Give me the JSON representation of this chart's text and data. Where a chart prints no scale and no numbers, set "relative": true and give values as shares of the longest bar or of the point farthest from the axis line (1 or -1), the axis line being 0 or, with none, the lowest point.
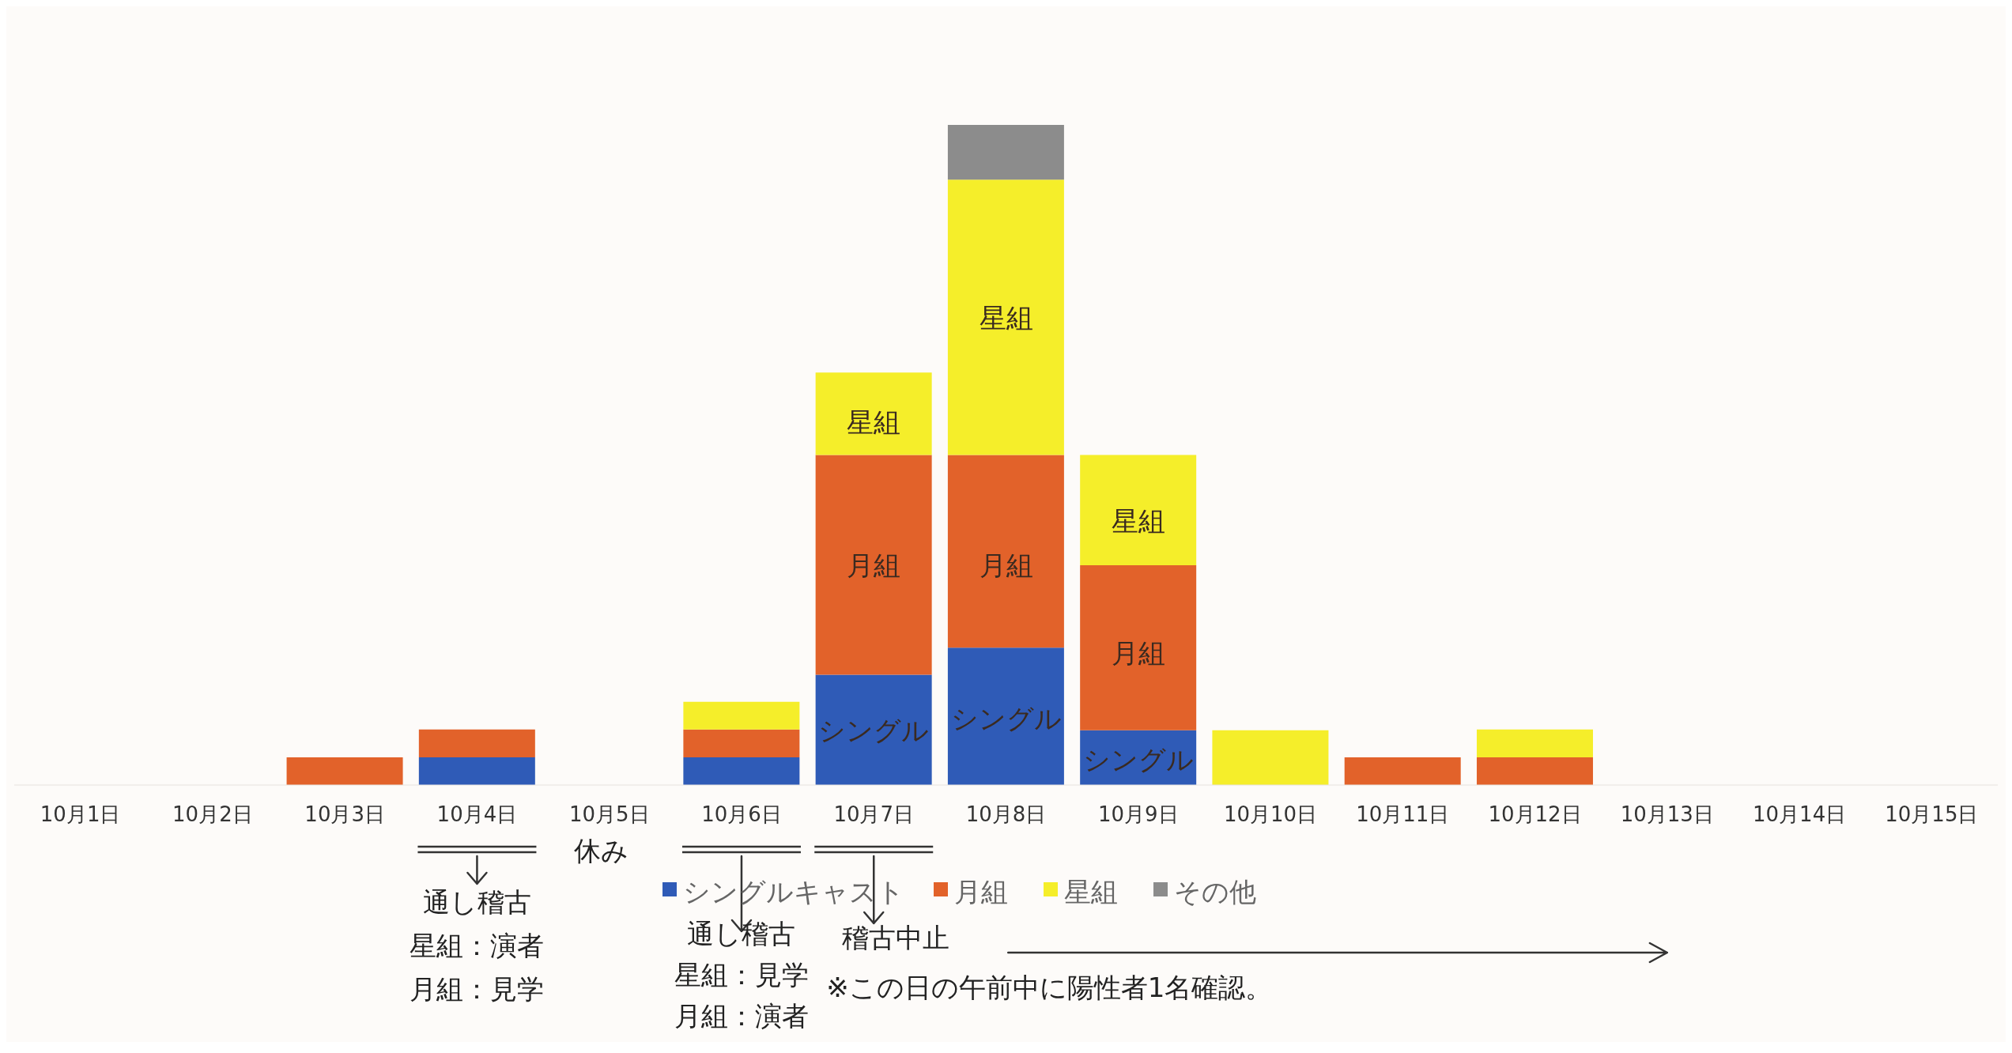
{
  "chart_data": {
    "type": "bar",
    "stacked": true,
    "relative": true,
    "legend": "bottom",
    "categories": [
      "10月1日",
      "10月2日",
      "10月3日",
      "10月4日",
      "10月5日",
      "10月6日",
      "10月7日",
      "10月8日",
      "10月9日",
      "10月10日",
      "10月11日",
      "10月12日",
      "10月13日",
      "10月14日",
      "10月15日"
    ],
    "series": [
      {
        "name": "シングルキャスト",
        "color": "#2f5bb7",
        "values": [
          null,
          null,
          null,
          0.042,
          null,
          0.042,
          0.167,
          0.208,
          0.083,
          null,
          null,
          null,
          null,
          null,
          null
        ]
      },
      {
        "name": "月組",
        "color": "#e2622a",
        "values": [
          null,
          null,
          0.042,
          0.042,
          null,
          0.042,
          0.333,
          0.292,
          0.25,
          null,
          0.042,
          0.042,
          null,
          null,
          null
        ]
      },
      {
        "name": "星組",
        "color": "#f5ee2a",
        "values": [
          null,
          null,
          null,
          null,
          null,
          0.042,
          0.125,
          0.417,
          0.167,
          0.083,
          null,
          0.042,
          null,
          null,
          null
        ]
      },
      {
        "name": "その他",
        "color": "#8c8c8c",
        "values": [
          null,
          null,
          null,
          null,
          null,
          null,
          null,
          0.083,
          null,
          null,
          null,
          null,
          null,
          null,
          null
        ]
      }
    ],
    "annotations": [
      "シングル",
      "月組",
      "星組",
      "シングル",
      "月組",
      "星組",
      "シングル",
      "月組",
      "星組",
      "通し稽古",
      "星組：演者",
      "月組：見学",
      "休み",
      "通し稽古",
      "星組：見学",
      "月組：演者",
      "稽古中止",
      "※この日の午前中に陽性者1名確認。"
    ]
  }
}
